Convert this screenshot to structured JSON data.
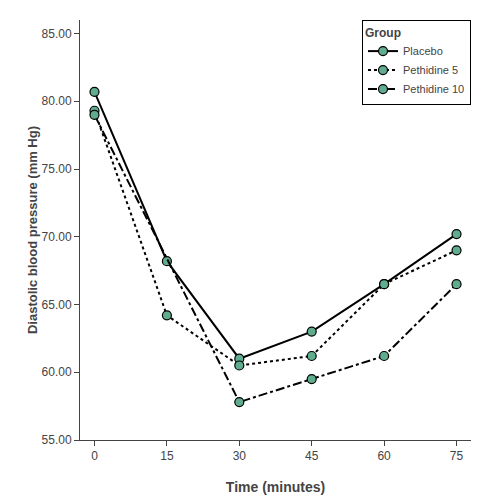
{
  "chart_data": {
    "type": "line",
    "x": [
      0,
      15,
      30,
      45,
      60,
      75
    ],
    "series": [
      {
        "name": "Placebo",
        "color": "#000000",
        "line_style": "solid",
        "marker": "circle",
        "values": [
          80.7,
          68.2,
          61.0,
          63.0,
          66.5,
          70.2
        ]
      },
      {
        "name": "Pethidine 5",
        "color": "#000000",
        "line_style": "dot",
        "marker": "circle",
        "values": [
          79.3,
          64.2,
          60.5,
          61.2,
          66.5,
          69.0
        ]
      },
      {
        "name": "Pethidine 10",
        "color": "#000000",
        "line_style": "dashdot",
        "marker": "circle",
        "x": [
          0,
          30,
          45,
          60,
          75
        ],
        "values": [
          79.0,
          57.8,
          59.5,
          61.2,
          66.5
        ]
      }
    ],
    "color": "#5fac8e",
    "xlabel": "Time (minutes)",
    "ylabel": "Diastolic blood pressure (mm Hg)",
    "legend_title": "Group",
    "legend": "upper right",
    "xlim": [
      -3,
      78
    ],
    "xticks": [
      0,
      15,
      30,
      45,
      60,
      75
    ],
    "ylim": [
      55.0,
      86.0
    ],
    "yticks": [
      {
        "value": 55,
        "label": "55.00"
      },
      {
        "value": 60,
        "label": "60.00"
      },
      {
        "value": 65,
        "label": "65.00"
      },
      {
        "value": 70,
        "label": "70.00"
      },
      {
        "value": 75,
        "label": "75.00"
      },
      {
        "value": 80,
        "label": "80.00"
      },
      {
        "value": 85,
        "label": "85.00"
      }
    ],
    "grid": false
  }
}
